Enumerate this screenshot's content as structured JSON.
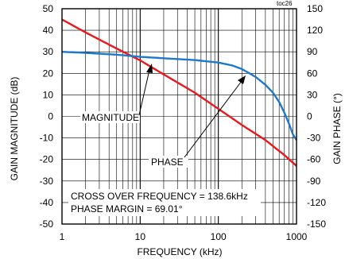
{
  "chart_data": {
    "type": "line",
    "title": "",
    "toc_label": "toc26",
    "xlabel": "FREQUENCY (kHz)",
    "ylabel_left": "GAIN MAGNITUDE (dB)",
    "ylabel_right": "GAIN PHASE (°)",
    "x_scale": "log",
    "xlim": [
      1,
      1000
    ],
    "ylim_left": [
      -50,
      50
    ],
    "ylim_right": [
      -150,
      150
    ],
    "x_ticks": [
      1,
      10,
      100,
      1000
    ],
    "x_tick_labels": [
      "1",
      "10",
      "100",
      "1000"
    ],
    "y_left_ticks": [
      50,
      40,
      30,
      20,
      10,
      0,
      -10,
      -20,
      -30,
      -40,
      -50
    ],
    "y_left_tick_labels": [
      "50",
      "40",
      "30",
      "20",
      "10",
      "0",
      "-10",
      "-20",
      "-30",
      "-40",
      "-50"
    ],
    "y_right_ticks": [
      150,
      120,
      90,
      60,
      30,
      0,
      -30,
      -60,
      -90,
      -120,
      -150
    ],
    "y_right_tick_labels": [
      "150",
      "120",
      "90",
      "60",
      "30",
      "0",
      "-30",
      "-60",
      "-90",
      "-120",
      "-150"
    ],
    "grid": true,
    "series": [
      {
        "name": "MAGNITUDE",
        "axis": "left",
        "color": "#e8191f",
        "x": [
          1,
          2,
          5,
          10,
          20,
          50,
          100,
          138.6,
          200,
          400,
          700,
          1000
        ],
        "y": [
          45,
          39,
          31.5,
          26,
          19.5,
          11,
          3.5,
          0,
          -4,
          -11,
          -18,
          -23
        ]
      },
      {
        "name": "PHASE",
        "axis": "right",
        "color": "#1f78c8",
        "x": [
          1,
          2,
          5,
          10,
          20,
          50,
          100,
          150,
          200,
          300,
          400,
          500,
          600,
          700,
          800,
          900,
          1000
        ],
        "y": [
          90,
          88.5,
          86,
          83,
          81,
          78.5,
          75,
          71,
          66,
          55,
          44,
          33,
          20,
          5,
          -10,
          -25,
          -33
        ]
      }
    ],
    "annotations": {
      "magnitude_label": "MAGNITUDE",
      "phase_label": "PHASE",
      "crossover_text": "CROSS OVER FREQUENCY = 138.6kHz",
      "phase_margin_text": "PHASE MARGIN = 69.01°"
    }
  }
}
